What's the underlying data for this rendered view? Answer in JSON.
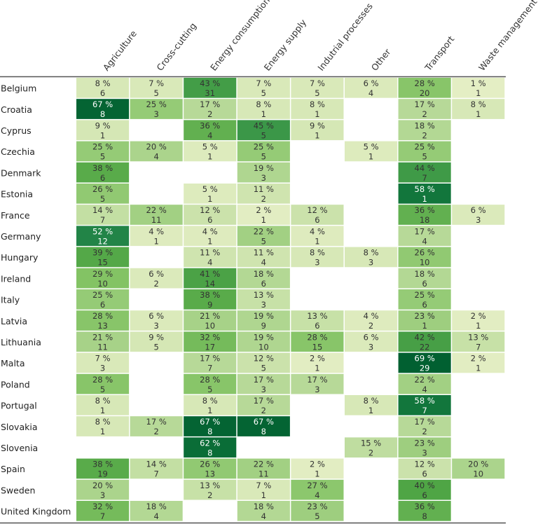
{
  "chart_data": {
    "type": "heatmap",
    "title": "",
    "value_format": "{pct} %",
    "columns": [
      "Agriculture",
      "Cross-cutting",
      "Energy consumption",
      "Energy supply",
      "Indutrial processes",
      "Other",
      "Transport",
      "Waste management"
    ],
    "rows": [
      "Belgium",
      "Croatia",
      "Cyprus",
      "Czechia",
      "Denmark",
      "Estonia",
      "France",
      "Germany",
      "Hungary",
      "Ireland",
      "Italy",
      "Latvia",
      "Lithuania",
      "Malta",
      "Poland",
      "Portugal",
      "Slovakia",
      "Slovenia",
      "Spain",
      "Sweden",
      "United Kingdom"
    ],
    "percent": [
      [
        8,
        7,
        43,
        7,
        7,
        6,
        28,
        1
      ],
      [
        67,
        25,
        17,
        8,
        8,
        null,
        17,
        8
      ],
      [
        9,
        null,
        36,
        45,
        9,
        null,
        18,
        null
      ],
      [
        25,
        20,
        5,
        25,
        null,
        5,
        25,
        null
      ],
      [
        38,
        null,
        null,
        19,
        null,
        null,
        44,
        null
      ],
      [
        26,
        null,
        5,
        11,
        null,
        null,
        58,
        null
      ],
      [
        14,
        22,
        12,
        2,
        12,
        null,
        36,
        6
      ],
      [
        52,
        4,
        4,
        22,
        4,
        null,
        17,
        null
      ],
      [
        39,
        null,
        11,
        11,
        8,
        8,
        26,
        null
      ],
      [
        29,
        6,
        41,
        18,
        null,
        null,
        18,
        null
      ],
      [
        25,
        null,
        38,
        13,
        null,
        null,
        25,
        null
      ],
      [
        28,
        6,
        21,
        19,
        13,
        4,
        23,
        2
      ],
      [
        21,
        9,
        32,
        19,
        28,
        6,
        42,
        13
      ],
      [
        7,
        null,
        17,
        12,
        2,
        null,
        69,
        2
      ],
      [
        28,
        null,
        28,
        17,
        17,
        null,
        22,
        null
      ],
      [
        8,
        null,
        8,
        17,
        null,
        8,
        58,
        null
      ],
      [
        8,
        17,
        67,
        67,
        null,
        null,
        17,
        null
      ],
      [
        null,
        null,
        62,
        null,
        null,
        15,
        23,
        null
      ],
      [
        38,
        14,
        26,
        22,
        2,
        null,
        12,
        20
      ],
      [
        20,
        null,
        13,
        7,
        27,
        null,
        40,
        null
      ],
      [
        32,
        18,
        null,
        18,
        23,
        null,
        36,
        null
      ]
    ],
    "counts": [
      [
        6,
        5,
        31,
        5,
        5,
        4,
        20,
        1
      ],
      [
        8,
        3,
        2,
        1,
        1,
        null,
        2,
        1
      ],
      [
        1,
        null,
        4,
        5,
        1,
        null,
        2,
        null
      ],
      [
        5,
        4,
        1,
        5,
        null,
        1,
        5,
        null
      ],
      [
        6,
        null,
        null,
        3,
        null,
        null,
        7,
        null
      ],
      [
        5,
        null,
        1,
        2,
        null,
        null,
        1,
        null
      ],
      [
        7,
        11,
        6,
        1,
        6,
        null,
        18,
        3
      ],
      [
        12,
        1,
        1,
        5,
        1,
        null,
        4,
        null
      ],
      [
        15,
        null,
        4,
        4,
        3,
        3,
        10,
        null
      ],
      [
        10,
        2,
        14,
        6,
        null,
        null,
        6,
        null
      ],
      [
        6,
        null,
        9,
        3,
        null,
        null,
        6,
        null
      ],
      [
        13,
        3,
        10,
        9,
        6,
        2,
        1,
        1
      ],
      [
        11,
        5,
        17,
        10,
        15,
        3,
        22,
        7
      ],
      [
        3,
        null,
        7,
        5,
        1,
        null,
        29,
        1
      ],
      [
        5,
        null,
        5,
        3,
        3,
        null,
        4,
        null
      ],
      [
        1,
        null,
        1,
        2,
        null,
        1,
        7,
        null
      ],
      [
        1,
        2,
        8,
        8,
        null,
        null,
        2,
        null
      ],
      [
        null,
        null,
        8,
        null,
        null,
        2,
        3,
        null
      ],
      [
        19,
        7,
        13,
        11,
        1,
        null,
        6,
        10
      ],
      [
        3,
        null,
        2,
        1,
        4,
        null,
        6,
        null
      ],
      [
        7,
        4,
        null,
        4,
        5,
        null,
        8,
        null
      ]
    ],
    "color_scale": {
      "stops": [
        {
          "value": 0,
          "color": "#e6efc6"
        },
        {
          "value": 10,
          "color": "#d3e6b3"
        },
        {
          "value": 20,
          "color": "#abd48c"
        },
        {
          "value": 30,
          "color": "#7fc160"
        },
        {
          "value": 40,
          "color": "#4fa545"
        },
        {
          "value": 50,
          "color": "#27894a"
        },
        {
          "value": 60,
          "color": "#0d7139"
        },
        {
          "value": 70,
          "color": "#005e30"
        }
      ],
      "light_text_color": "#ffffff",
      "dark_text_color": "#333333",
      "light_text_threshold": 50
    },
    "grid": false
  }
}
